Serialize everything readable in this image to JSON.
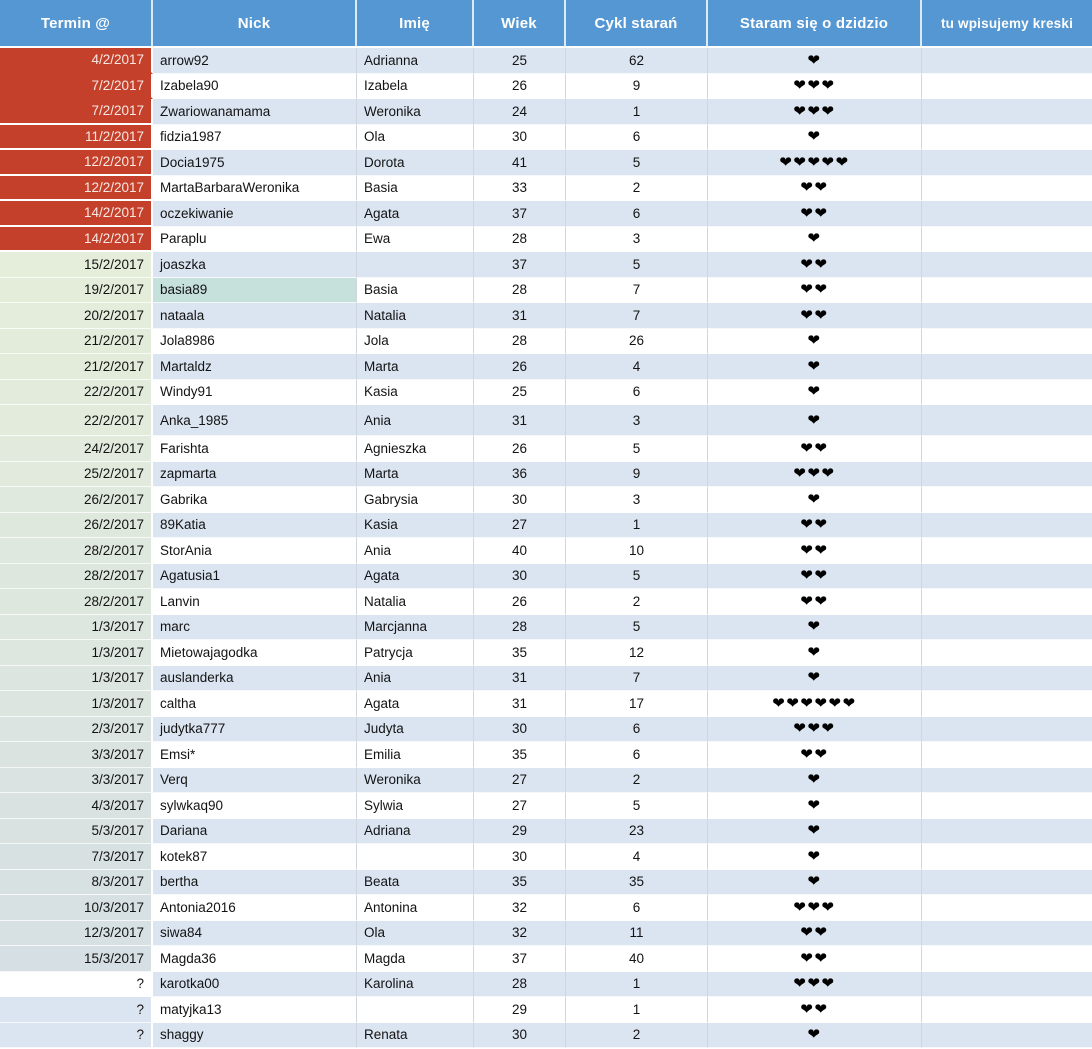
{
  "table": {
    "headers": [
      "Termin @",
      "Nick",
      "Imię",
      "Wiek",
      "Cykl starań",
      "Staram się o dzidzio",
      "tu wpisujemy kreski"
    ],
    "heart_glyph": "❤",
    "colors": {
      "header_bg": "#5597d2",
      "stripe_blue": "#dbe5f1",
      "red": "#c5402a",
      "red_text": "#f6e9e5",
      "green_start": "#e5eeda",
      "green_end": "#d6dfe3",
      "nick_highlight": "#c6e1dc",
      "heart": "#000000"
    },
    "rows": [
      {
        "termin": "4/2/2017",
        "termin_bg": "red",
        "nick": "arrow92",
        "imie": "Adrianna",
        "wiek": "25",
        "cykl": "62",
        "hearts": 1
      },
      {
        "termin": "7/2/2017",
        "termin_bg": "red",
        "nick": "Izabela90",
        "imie": "Izabela",
        "wiek": "26",
        "cykl": "9",
        "hearts": 3
      },
      {
        "termin": "7/2/2017",
        "termin_bg": "red",
        "nick": "Zwariowanamama",
        "imie": "Weronika",
        "wiek": "24",
        "cykl": "1",
        "hearts": 3
      },
      {
        "termin": "11/2/2017",
        "termin_bg": "red",
        "nick": "fidzia1987",
        "imie": "Ola",
        "wiek": "30",
        "cykl": "6",
        "hearts": 1
      },
      {
        "termin": "12/2/2017",
        "termin_bg": "red",
        "nick": "Docia1975",
        "imie": "Dorota",
        "wiek": "41",
        "cykl": "5",
        "hearts": 5
      },
      {
        "termin": "12/2/2017",
        "termin_bg": "red",
        "nick": "MartaBarbaraWeronika",
        "imie": "Basia",
        "wiek": "33",
        "cykl": "2",
        "hearts": 2
      },
      {
        "termin": "14/2/2017",
        "termin_bg": "red",
        "nick": "oczekiwanie",
        "imie": "Agata",
        "wiek": "37",
        "cykl": "6",
        "hearts": 2
      },
      {
        "termin": "14/2/2017",
        "termin_bg": "red",
        "nick": "Paraplu",
        "imie": "Ewa",
        "wiek": "28",
        "cykl": "3",
        "hearts": 1
      },
      {
        "termin": "15/2/2017",
        "termin_bg": "green",
        "nick": "joaszka",
        "imie": "",
        "wiek": "37",
        "cykl": "5",
        "hearts": 2
      },
      {
        "termin": "19/2/2017",
        "termin_bg": "green",
        "nick": "basia89",
        "nick_highlight": true,
        "imie": "Basia",
        "wiek": "28",
        "cykl": "7",
        "hearts": 2
      },
      {
        "termin": "20/2/2017",
        "termin_bg": "green",
        "nick": "nataala",
        "imie": "Natalia",
        "wiek": "31",
        "cykl": "7",
        "hearts": 2
      },
      {
        "termin": "21/2/2017",
        "termin_bg": "green",
        "nick": "Jola8986",
        "imie": "Jola",
        "wiek": "28",
        "cykl": "26",
        "hearts": 1
      },
      {
        "termin": "21/2/2017",
        "termin_bg": "green",
        "nick": "Martaldz",
        "imie": "Marta",
        "wiek": "26",
        "cykl": "4",
        "hearts": 1
      },
      {
        "termin": "22/2/2017",
        "termin_bg": "green",
        "nick": "Windy91",
        "imie": "Kasia",
        "wiek": "25",
        "cykl": "6",
        "hearts": 1
      },
      {
        "termin": "22/2/2017",
        "termin_bg": "green",
        "nick": "Anka_1985",
        "tall": true,
        "imie": "Ania",
        "wiek": "31",
        "cykl": "3",
        "hearts": 1
      },
      {
        "termin": "24/2/2017",
        "termin_bg": "green",
        "nick": "Farishta",
        "imie": "Agnieszka",
        "wiek": "26",
        "cykl": "5",
        "hearts": 2
      },
      {
        "termin": "25/2/2017",
        "termin_bg": "green",
        "nick": "zapmarta",
        "imie": "Marta",
        "wiek": "36",
        "cykl": "9",
        "hearts": 3
      },
      {
        "termin": "26/2/2017",
        "termin_bg": "green",
        "nick": "Gabrika",
        "imie": "Gabrysia",
        "wiek": "30",
        "cykl": "3",
        "hearts": 1
      },
      {
        "termin": "26/2/2017",
        "termin_bg": "green",
        "nick": "89Katia",
        "imie": "Kasia",
        "wiek": "27",
        "cykl": "1",
        "hearts": 2
      },
      {
        "termin": "28/2/2017",
        "termin_bg": "green",
        "nick": "StorAnia",
        "imie": "Ania",
        "wiek": "40",
        "cykl": "10",
        "hearts": 2
      },
      {
        "termin": "28/2/2017",
        "termin_bg": "green",
        "nick": "Agatusia1",
        "imie": "Agata",
        "wiek": "30",
        "cykl": "5",
        "hearts": 2
      },
      {
        "termin": "28/2/2017",
        "termin_bg": "green",
        "nick": "Lanvin",
        "imie": "Natalia",
        "wiek": "26",
        "cykl": "2",
        "hearts": 2
      },
      {
        "termin": "1/3/2017",
        "termin_bg": "green",
        "nick": "marc",
        "imie": "Marcjanna",
        "wiek": "28",
        "cykl": "5",
        "hearts": 1
      },
      {
        "termin": "1/3/2017",
        "termin_bg": "green",
        "nick": "Mietowajagodka",
        "imie": "Patrycja",
        "wiek": "35",
        "cykl": "12",
        "hearts": 1
      },
      {
        "termin": "1/3/2017",
        "termin_bg": "green",
        "nick": "auslanderka",
        "imie": "Ania",
        "wiek": "31",
        "cykl": "7",
        "hearts": 1
      },
      {
        "termin": "1/3/2017",
        "termin_bg": "green",
        "nick": "caltha",
        "imie": "Agata",
        "wiek": "31",
        "cykl": "17",
        "hearts": 6
      },
      {
        "termin": "2/3/2017",
        "termin_bg": "green",
        "nick": "judytka777",
        "imie": "Judyta",
        "wiek": "30",
        "cykl": "6",
        "hearts": 3
      },
      {
        "termin": "3/3/2017",
        "termin_bg": "green",
        "nick": "Emsi*",
        "imie": "Emilia",
        "wiek": "35",
        "cykl": "6",
        "hearts": 2
      },
      {
        "termin": "3/3/2017",
        "termin_bg": "green",
        "nick": "Verq",
        "imie": "Weronika",
        "wiek": "27",
        "cykl": "2",
        "hearts": 1
      },
      {
        "termin": "4/3/2017",
        "termin_bg": "green",
        "nick": "sylwkaq90",
        "imie": "Sylwia",
        "wiek": "27",
        "cykl": "5",
        "hearts": 1
      },
      {
        "termin": "5/3/2017",
        "termin_bg": "green",
        "nick": "Dariana",
        "imie": "Adriana",
        "wiek": "29",
        "cykl": "23",
        "hearts": 1
      },
      {
        "termin": "7/3/2017",
        "termin_bg": "green",
        "nick": "kotek87",
        "imie": "",
        "wiek": "30",
        "cykl": "4",
        "hearts": 1
      },
      {
        "termin": "8/3/2017",
        "termin_bg": "green",
        "nick": "bertha",
        "imie": "Beata",
        "wiek": "35",
        "cykl": "35",
        "hearts": 1
      },
      {
        "termin": "10/3/2017",
        "termin_bg": "green",
        "nick": "Antonia2016",
        "imie": "Antonina",
        "wiek": "32",
        "cykl": "6",
        "hearts": 3
      },
      {
        "termin": "12/3/2017",
        "termin_bg": "green",
        "nick": "siwa84",
        "imie": "Ola",
        "wiek": "32",
        "cykl": "11",
        "hearts": 2
      },
      {
        "termin": "15/3/2017",
        "termin_bg": "green",
        "nick": "Magda36",
        "imie": "Magda",
        "wiek": "37",
        "cykl": "40",
        "hearts": 2
      },
      {
        "termin": "?",
        "termin_bg": "white",
        "nick": "karotka00",
        "imie": "Karolina",
        "wiek": "28",
        "cykl": "1",
        "hearts": 3
      },
      {
        "termin": "?",
        "termin_bg": "blue",
        "nick": "matyjka13",
        "imie": "",
        "wiek": "29",
        "cykl": "1",
        "hearts": 2
      },
      {
        "termin": "?",
        "termin_bg": "blue",
        "nick": "shaggy",
        "imie": "Renata",
        "wiek": "30",
        "cykl": "2",
        "hearts": 1
      }
    ]
  }
}
